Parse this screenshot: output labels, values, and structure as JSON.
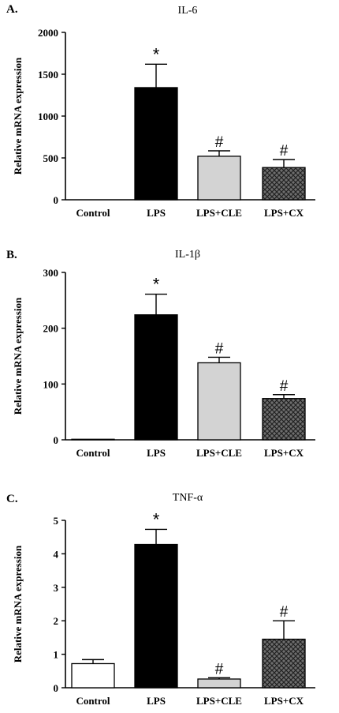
{
  "chart_data": [
    {
      "type": "bar",
      "panel_label": "A.",
      "title": "IL-6",
      "ylabel": "Relative mRNA expression",
      "xlabel": "",
      "categories": [
        "Control",
        "LPS",
        "LPS+CLE",
        "LPS+CX"
      ],
      "values": [
        0,
        1340,
        520,
        385
      ],
      "errors": [
        0,
        280,
        65,
        95
      ],
      "markers": [
        "",
        "*",
        "#",
        "#"
      ],
      "ylim": [
        0,
        2000
      ],
      "yticks": [
        "0",
        "500",
        "1000",
        "1500",
        "2000"
      ],
      "bar_styles": [
        "white",
        "black",
        "lightgray",
        "crosshatch"
      ]
    },
    {
      "type": "bar",
      "panel_label": "B.",
      "title": "IL-1β",
      "ylabel": "Relative mRNA expression",
      "xlabel": "",
      "categories": [
        "Control",
        "LPS",
        "LPS+CLE",
        "LPS+CX"
      ],
      "values": [
        1,
        224,
        138,
        74
      ],
      "errors": [
        0,
        37,
        10,
        7
      ],
      "markers": [
        "",
        "*",
        "#",
        "#"
      ],
      "ylim": [
        0,
        300
      ],
      "yticks": [
        "0",
        "100",
        "200",
        "300"
      ],
      "bar_styles": [
        "white",
        "black",
        "lightgray",
        "crosshatch"
      ]
    },
    {
      "type": "bar",
      "panel_label": "C.",
      "title": "TNF-α",
      "ylabel": "Relative mRNA expression",
      "xlabel": "",
      "categories": [
        "Control",
        "LPS",
        "LPS+CLE",
        "LPS+CX"
      ],
      "values": [
        0.72,
        4.28,
        0.26,
        1.45
      ],
      "errors": [
        0.12,
        0.45,
        0.04,
        0.55
      ],
      "markers": [
        "",
        "*",
        "#",
        "#"
      ],
      "ylim": [
        0,
        5
      ],
      "yticks": [
        "0",
        "1",
        "2",
        "3",
        "4",
        "5"
      ],
      "bar_styles": [
        "white",
        "black",
        "lightgray",
        "crosshatch"
      ]
    }
  ],
  "colors": {
    "black": "#000000",
    "lightgray": "#d3d3d3",
    "white": "#ffffff",
    "crosshatch": "#6e6e6e"
  }
}
